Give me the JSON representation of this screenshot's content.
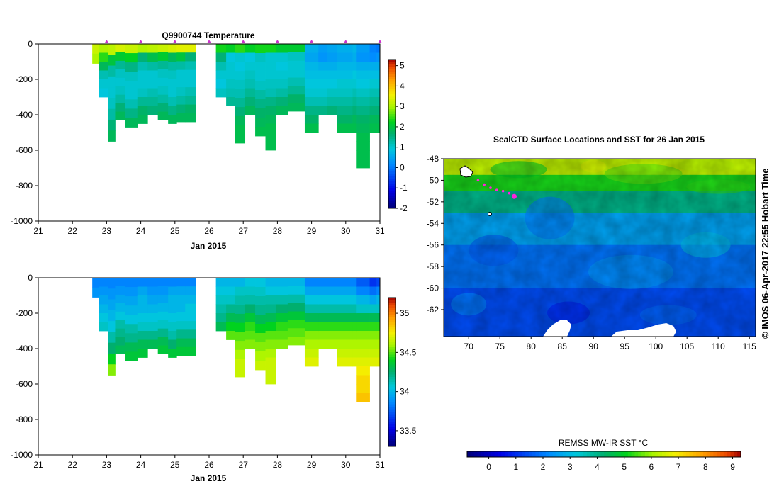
{
  "chart_data": [
    {
      "type": "heatmap",
      "title": "Q9900744  Temperature",
      "xlabel": "Jan 2015",
      "ylabel": "",
      "x_ticks": [
        "21",
        "22",
        "23",
        "24",
        "25",
        "26",
        "27",
        "28",
        "29",
        "30",
        "31"
      ],
      "xlim": [
        21,
        31
      ],
      "y_ticks": [
        "0",
        "-200",
        "-400",
        "-600",
        "-800",
        "-1000"
      ],
      "ylim": [
        -1000,
        0
      ],
      "colorbar": {
        "ticks": [
          "5",
          "4",
          "3",
          "2",
          "1",
          "0",
          "-1",
          "-2"
        ],
        "range": [
          -2,
          5.3
        ]
      },
      "profile_markers": [
        23,
        24,
        25,
        26,
        27,
        28,
        29,
        30,
        31
      ],
      "profiles": [
        {
          "start": 22.58,
          "end": 22.78,
          "depth": -110,
          "values": [
            3.2,
            3.0
          ]
        },
        {
          "start": 22.78,
          "end": 23.05,
          "depth": -300,
          "values": [
            3.0,
            2.4,
            1.8,
            1.2,
            1.0,
            0.9
          ]
        },
        {
          "start": 23.05,
          "end": 23.25,
          "depth": -550,
          "values": [
            3.1,
            2.0,
            1.3,
            1.0,
            1.0,
            1.1,
            1.3,
            1.6,
            1.8
          ]
        },
        {
          "start": 23.25,
          "end": 23.55,
          "depth": -430,
          "values": [
            3.3,
            2.1,
            1.4,
            1.1,
            1.0,
            1.1,
            1.3,
            1.6,
            1.8
          ]
        },
        {
          "start": 23.55,
          "end": 23.9,
          "depth": -470,
          "values": [
            3.2,
            2.2,
            1.5,
            1.1,
            1.0,
            1.0,
            1.2,
            1.5,
            1.8
          ]
        },
        {
          "start": 23.9,
          "end": 24.2,
          "depth": -450,
          "values": [
            3.0,
            1.6,
            1.2,
            1.0,
            1.0,
            1.1,
            1.4,
            1.7,
            1.8
          ]
        },
        {
          "start": 24.2,
          "end": 24.5,
          "depth": -400,
          "values": [
            3.1,
            1.9,
            1.3,
            1.0,
            1.0,
            1.2,
            1.4,
            1.6
          ]
        },
        {
          "start": 24.5,
          "end": 24.8,
          "depth": -430,
          "values": [
            3.2,
            2.1,
            1.4,
            1.1,
            1.0,
            1.1,
            1.3,
            1.6,
            1.8
          ]
        },
        {
          "start": 24.8,
          "end": 25.05,
          "depth": -450,
          "values": [
            3.3,
            1.8,
            1.3,
            1.1,
            1.0,
            1.0,
            1.2,
            1.5,
            1.8
          ]
        },
        {
          "start": 25.05,
          "end": 25.3,
          "depth": -440,
          "values": [
            3.4,
            2.0,
            1.3,
            1.0,
            1.0,
            1.1,
            1.3,
            1.6,
            1.8
          ]
        },
        {
          "start": 25.3,
          "end": 25.6,
          "depth": -440,
          "values": [
            3.4,
            1.6,
            1.2,
            1.0,
            1.0,
            1.2,
            1.4,
            1.7,
            1.8
          ]
        },
        {
          "start": 26.2,
          "end": 26.5,
          "depth": -300,
          "values": [
            2.3,
            1.6,
            1.2,
            1.0,
            0.9,
            1.1
          ]
        },
        {
          "start": 26.5,
          "end": 26.75,
          "depth": -350,
          "values": [
            2.2,
            0.9,
            1.0,
            1.0,
            1.1,
            1.2,
            1.4
          ]
        },
        {
          "start": 26.75,
          "end": 27.05,
          "depth": -560,
          "values": [
            2.4,
            1.0,
            0.9,
            1.0,
            1.1,
            1.2,
            1.4,
            1.6,
            1.8,
            1.9,
            1.9
          ]
        },
        {
          "start": 27.05,
          "end": 27.35,
          "depth": -400,
          "values": [
            2.2,
            0.9,
            1.0,
            1.1,
            1.2,
            1.4,
            1.6,
            1.8
          ]
        },
        {
          "start": 27.35,
          "end": 27.65,
          "depth": -520,
          "values": [
            2.3,
            1.1,
            1.0,
            1.0,
            1.1,
            1.3,
            1.5,
            1.7,
            1.8,
            1.9
          ]
        },
        {
          "start": 27.65,
          "end": 27.95,
          "depth": -600,
          "values": [
            2.3,
            1.0,
            1.0,
            1.0,
            1.1,
            1.2,
            1.5,
            1.7,
            1.8,
            1.9,
            1.9,
            1.9
          ]
        },
        {
          "start": 27.95,
          "end": 28.3,
          "depth": -400,
          "values": [
            2.1,
            1.0,
            0.9,
            1.0,
            1.1,
            1.3,
            1.6,
            1.8
          ]
        },
        {
          "start": 28.3,
          "end": 28.8,
          "depth": -380,
          "values": [
            2.1,
            1.1,
            1.0,
            1.0,
            1.2,
            1.4,
            1.7,
            1.8
          ]
        },
        {
          "start": 28.8,
          "end": 29.2,
          "depth": -500,
          "values": [
            0.6,
            0.5,
            0.7,
            0.8,
            0.9,
            1.0,
            1.2,
            1.5,
            1.7,
            1.9
          ]
        },
        {
          "start": 29.2,
          "end": 29.45,
          "depth": -400,
          "values": [
            0.4,
            0.3,
            0.6,
            0.8,
            0.9,
            1.0,
            1.2,
            1.5
          ]
        },
        {
          "start": 29.45,
          "end": 29.75,
          "depth": -400,
          "values": [
            0.5,
            0.4,
            0.6,
            0.8,
            0.9,
            1.1,
            1.3,
            1.6
          ]
        },
        {
          "start": 29.75,
          "end": 30.2,
          "depth": -500,
          "values": [
            0.6,
            0.5,
            0.7,
            0.8,
            1.0,
            1.1,
            1.3,
            1.5,
            1.7,
            1.9
          ]
        },
        {
          "start": 30.2,
          "end": 30.3,
          "depth": -500,
          "values": [
            0.7,
            0.6,
            0.7,
            0.9,
            1.0,
            1.2,
            1.4,
            1.6,
            1.8,
            1.9
          ]
        },
        {
          "start": 30.3,
          "end": 30.7,
          "depth": -700,
          "values": [
            0.4,
            0.3,
            0.6,
            0.8,
            0.9,
            1.1,
            1.3,
            1.5,
            1.7,
            1.8,
            1.9,
            1.9,
            1.9,
            1.9
          ]
        },
        {
          "start": 30.7,
          "end": 30.9,
          "depth": -500,
          "values": [
            0.1,
            0.2,
            0.6,
            0.8,
            1.0,
            1.2,
            1.4,
            1.6,
            1.8,
            1.9
          ]
        },
        {
          "start": 30.9,
          "end": 31.0,
          "depth": -500,
          "values": [
            0.0,
            0.3,
            0.6,
            0.8,
            1.0,
            1.2,
            1.4,
            1.6,
            1.8,
            1.9
          ]
        }
      ]
    },
    {
      "type": "heatmap",
      "title": "",
      "xlabel": "Jan 2015",
      "ylabel": "",
      "x_ticks": [
        "21",
        "22",
        "23",
        "24",
        "25",
        "26",
        "27",
        "28",
        "29",
        "30",
        "31"
      ],
      "xlim": [
        21,
        31
      ],
      "y_ticks": [
        "0",
        "-200",
        "-400",
        "-600",
        "-800",
        "-1000"
      ],
      "ylim": [
        -1000,
        0
      ],
      "colorbar": {
        "ticks": [
          "35",
          "34.5",
          "34",
          "33.5"
        ],
        "range": [
          33.3,
          35.2
        ]
      },
      "profiles": [
        {
          "start": 22.58,
          "end": 22.78,
          "depth": -110,
          "values": [
            33.85,
            33.9
          ]
        },
        {
          "start": 22.78,
          "end": 23.05,
          "depth": -300,
          "values": [
            33.85,
            33.9,
            33.95,
            34.0,
            34.05,
            34.1
          ]
        },
        {
          "start": 23.05,
          "end": 23.25,
          "depth": -550,
          "values": [
            33.85,
            33.9,
            33.95,
            34.0,
            34.05,
            34.15,
            34.25,
            34.4,
            34.55
          ]
        },
        {
          "start": 23.25,
          "end": 23.55,
          "depth": -430,
          "values": [
            33.85,
            33.9,
            33.95,
            34.0,
            34.05,
            34.15,
            34.2,
            34.25,
            34.3
          ]
        },
        {
          "start": 23.55,
          "end": 23.9,
          "depth": -470,
          "values": [
            33.85,
            33.9,
            33.95,
            34.0,
            34.05,
            34.15,
            34.2,
            34.3,
            34.35
          ]
        },
        {
          "start": 23.9,
          "end": 24.2,
          "depth": -450,
          "values": [
            33.85,
            33.95,
            34.0,
            34.0,
            34.05,
            34.1,
            34.2,
            34.3,
            34.35
          ]
        },
        {
          "start": 24.2,
          "end": 24.5,
          "depth": -400,
          "values": [
            33.85,
            33.9,
            33.95,
            34.0,
            34.05,
            34.1,
            34.2,
            34.3
          ]
        },
        {
          "start": 24.5,
          "end": 24.8,
          "depth": -430,
          "values": [
            33.85,
            33.9,
            33.95,
            34.0,
            34.05,
            34.1,
            34.2,
            34.3,
            34.35
          ]
        },
        {
          "start": 24.8,
          "end": 25.05,
          "depth": -450,
          "values": [
            33.85,
            33.95,
            34.0,
            34.0,
            34.05,
            34.1,
            34.15,
            34.25,
            34.35
          ]
        },
        {
          "start": 25.05,
          "end": 25.3,
          "depth": -440,
          "values": [
            33.85,
            33.95,
            34.0,
            34.0,
            34.05,
            34.1,
            34.2,
            34.3,
            34.35
          ]
        },
        {
          "start": 25.3,
          "end": 25.6,
          "depth": -440,
          "values": [
            33.85,
            33.95,
            34.0,
            34.05,
            34.05,
            34.1,
            34.2,
            34.3,
            34.35
          ]
        },
        {
          "start": 26.2,
          "end": 26.5,
          "depth": -300,
          "values": [
            34.0,
            34.05,
            34.1,
            34.15,
            34.2,
            34.3
          ]
        },
        {
          "start": 26.5,
          "end": 26.75,
          "depth": -350,
          "values": [
            34.0,
            34.05,
            34.1,
            34.2,
            34.3,
            34.4,
            34.5
          ]
        },
        {
          "start": 26.75,
          "end": 27.05,
          "depth": -560,
          "values": [
            34.0,
            34.1,
            34.15,
            34.2,
            34.3,
            34.4,
            34.5,
            34.55,
            34.6,
            34.65,
            34.65
          ]
        },
        {
          "start": 27.05,
          "end": 27.35,
          "depth": -400,
          "values": [
            34.05,
            34.1,
            34.15,
            34.25,
            34.35,
            34.45,
            34.5,
            34.55
          ]
        },
        {
          "start": 27.35,
          "end": 27.65,
          "depth": -520,
          "values": [
            34.05,
            34.1,
            34.15,
            34.2,
            34.3,
            34.4,
            34.5,
            34.55,
            34.6,
            34.65
          ]
        },
        {
          "start": 27.65,
          "end": 27.95,
          "depth": -600,
          "values": [
            34.0,
            34.05,
            34.15,
            34.2,
            34.3,
            34.4,
            34.5,
            34.55,
            34.6,
            34.65,
            34.65,
            34.65
          ]
        },
        {
          "start": 27.95,
          "end": 28.3,
          "depth": -400,
          "values": [
            34.0,
            34.05,
            34.15,
            34.25,
            34.35,
            34.45,
            34.5,
            34.55
          ]
        },
        {
          "start": 28.3,
          "end": 28.8,
          "depth": -380,
          "values": [
            34.0,
            34.05,
            34.15,
            34.25,
            34.35,
            34.45,
            34.5,
            34.55
          ]
        },
        {
          "start": 28.8,
          "end": 29.2,
          "depth": -500,
          "values": [
            33.85,
            33.95,
            34.05,
            34.15,
            34.3,
            34.45,
            34.55,
            34.6,
            34.65,
            34.7
          ]
        },
        {
          "start": 29.2,
          "end": 29.45,
          "depth": -400,
          "values": [
            33.85,
            33.95,
            34.05,
            34.15,
            34.3,
            34.45,
            34.55,
            34.6
          ]
        },
        {
          "start": 29.45,
          "end": 29.75,
          "depth": -400,
          "values": [
            33.85,
            33.95,
            34.05,
            34.15,
            34.3,
            34.45,
            34.55,
            34.6
          ]
        },
        {
          "start": 29.75,
          "end": 30.2,
          "depth": -500,
          "values": [
            33.85,
            33.95,
            34.05,
            34.15,
            34.3,
            34.45,
            34.55,
            34.6,
            34.65,
            34.7
          ]
        },
        {
          "start": 30.2,
          "end": 30.3,
          "depth": -500,
          "values": [
            33.85,
            33.95,
            34.05,
            34.15,
            34.3,
            34.45,
            34.55,
            34.6,
            34.65,
            34.7
          ]
        },
        {
          "start": 30.3,
          "end": 30.7,
          "depth": -700,
          "values": [
            33.75,
            33.85,
            34.0,
            34.1,
            34.3,
            34.45,
            34.55,
            34.6,
            34.65,
            34.7,
            34.75,
            34.8,
            34.8,
            34.85
          ]
        },
        {
          "start": 30.7,
          "end": 30.9,
          "depth": -500,
          "values": [
            33.65,
            33.8,
            33.95,
            34.1,
            34.3,
            34.45,
            34.55,
            34.6,
            34.65,
            34.7
          ]
        },
        {
          "start": 30.9,
          "end": 31.0,
          "depth": -500,
          "values": [
            33.7,
            33.85,
            34.0,
            34.1,
            34.3,
            34.45,
            34.55,
            34.6,
            34.65,
            34.7
          ]
        }
      ]
    },
    {
      "type": "heatmap",
      "title": "SealCTD Surface Locations and SST for 26 Jan 2015",
      "xlabel": "",
      "ylabel": "",
      "x_ticks": [
        "70",
        "75",
        "80",
        "85",
        "90",
        "95",
        "100",
        "105",
        "110",
        "115"
      ],
      "xlim": [
        66,
        116
      ],
      "y_ticks": [
        "-48",
        "-50",
        "-52",
        "-54",
        "-56",
        "-58",
        "-60",
        "-62"
      ],
      "ylim": [
        -64.5,
        -48
      ],
      "side_label": "© IMOS 06-Apr-2017 22:55 Hobart Time",
      "colorbar": {
        "label": "REMSS MW-IR SST °C",
        "ticks": [
          "0",
          "1",
          "2",
          "3",
          "4",
          "5",
          "6",
          "7",
          "8",
          "9"
        ],
        "range": [
          -0.8,
          9.3
        ]
      },
      "sst_zones": [
        {
          "lat_top": -48,
          "lat_bottom": -49.5,
          "sst": 6.3
        },
        {
          "lat_top": -49.5,
          "lat_bottom": -51,
          "sst": 5.2
        },
        {
          "lat_top": -51,
          "lat_bottom": -53,
          "sst": 4.0
        },
        {
          "lat_top": -53,
          "lat_bottom": -56,
          "sst": 2.6
        },
        {
          "lat_top": -56,
          "lat_bottom": -60,
          "sst": 1.9
        },
        {
          "lat_top": -60,
          "lat_bottom": -64.5,
          "sst": 1.4
        }
      ],
      "track": {
        "lon": [
          71.5,
          72.5,
          73.5,
          74.5,
          75.5,
          76.5,
          77.3
        ],
        "lat": [
          -50.0,
          -50.4,
          -50.7,
          -50.9,
          -51.0,
          -51.2,
          -51.5
        ]
      }
    }
  ]
}
